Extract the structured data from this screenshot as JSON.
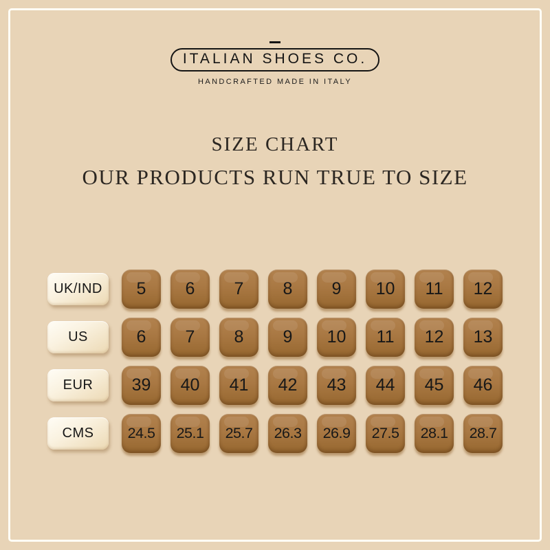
{
  "logo": {
    "brand": "ITALIAN SHOES CO.",
    "tagline": "HANDCRAFTED MADE IN ITALY"
  },
  "heading": {
    "title": "SIZE CHART",
    "subtitle": "OUR PRODUCTS RUN TRUE TO SIZE"
  },
  "chart_data": {
    "type": "table",
    "title": "SIZE CHART",
    "row_header_column": [
      "UK/IND",
      "US",
      "EUR",
      "CMS"
    ],
    "rows": [
      {
        "label": "UK/IND",
        "values": [
          "5",
          "6",
          "7",
          "8",
          "9",
          "10",
          "11",
          "12"
        ]
      },
      {
        "label": "US",
        "values": [
          "6",
          "7",
          "8",
          "9",
          "10",
          "11",
          "12",
          "13"
        ]
      },
      {
        "label": "EUR",
        "values": [
          "39",
          "40",
          "41",
          "42",
          "43",
          "44",
          "45",
          "46"
        ]
      },
      {
        "label": "CMS",
        "values": [
          "24.5",
          "25.1",
          "25.7",
          "26.3",
          "26.9",
          "27.5",
          "28.1",
          "28.7"
        ]
      }
    ]
  },
  "colors": {
    "background": "#e8d4b7",
    "frame_border": "#fffdf6",
    "tile_brown": "#a97843",
    "tile_brown_dark": "#96672f",
    "tile_brown_light": "#b2824e",
    "label_cream": "#faf2e0",
    "heading_text": "#2c2722",
    "logo_text": "#141414"
  }
}
